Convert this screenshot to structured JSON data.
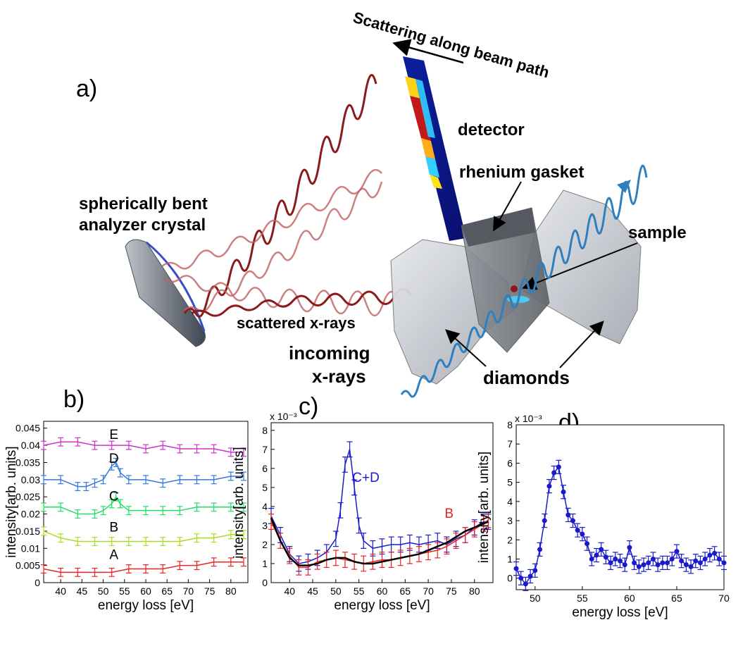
{
  "figure": {
    "panel_labels": [
      "a)",
      "b)",
      "c)",
      "d)"
    ],
    "annotations": {
      "scattering_direction": "Scattering along beam path",
      "detector": "detector",
      "rhenium_gasket": "rhenium gasket",
      "analyzer_line1": "spherically bent",
      "analyzer_line2": "analyzer crystal",
      "sample": "sample",
      "scattered": "scattered x-rays",
      "incoming_line1": "incoming",
      "incoming_line2": "x-rays",
      "diamonds": "diamonds"
    },
    "colors": {
      "scattered": "#8b1a1a",
      "incoming": "#1a1aff",
      "E": "#cc33cc",
      "D": "#3377dd",
      "C": "#22dd66",
      "B": "#aadd22",
      "A": "#ee2222",
      "blue": "#1a1acc",
      "red": "#ee2020",
      "black": "#000000"
    }
  },
  "chart_data": [
    {
      "panel": "b)",
      "type": "line",
      "xlabel": "energy loss [eV]",
      "ylabel": "intensity[arb. units]",
      "xlim": [
        36,
        84
      ],
      "ylim": [
        0,
        0.047
      ],
      "xticks": [
        "40",
        "45",
        "50",
        "55",
        "60",
        "65",
        "70",
        "75",
        "80"
      ],
      "yticks": [
        "0",
        "0.005",
        "0.01",
        "0.015",
        "0.02",
        "0.025",
        "0.03",
        "0.035",
        "0.04",
        "0.045"
      ],
      "series": [
        {
          "name": "E",
          "color": "#cc33cc",
          "x": [
            36,
            40,
            44,
            48,
            52,
            56,
            60,
            64,
            68,
            72,
            76,
            80,
            83
          ],
          "y": [
            0.04,
            0.041,
            0.041,
            0.04,
            0.04,
            0.04,
            0.039,
            0.04,
            0.039,
            0.039,
            0.039,
            0.038,
            0.038
          ]
        },
        {
          "name": "D",
          "color": "#3377dd",
          "x": [
            36,
            40,
            44,
            46,
            48,
            50,
            52,
            53,
            54,
            56,
            60,
            64,
            68,
            72,
            76,
            80,
            83
          ],
          "y": [
            0.03,
            0.03,
            0.028,
            0.028,
            0.029,
            0.03,
            0.034,
            0.035,
            0.032,
            0.03,
            0.03,
            0.029,
            0.03,
            0.03,
            0.03,
            0.031,
            0.031
          ]
        },
        {
          "name": "C",
          "color": "#22dd66",
          "x": [
            36,
            40,
            44,
            48,
            50,
            52,
            53,
            54,
            56,
            60,
            64,
            68,
            72,
            76,
            80,
            83
          ],
          "y": [
            0.022,
            0.022,
            0.02,
            0.02,
            0.021,
            0.023,
            0.025,
            0.023,
            0.021,
            0.021,
            0.021,
            0.021,
            0.022,
            0.022,
            0.022,
            0.022
          ]
        },
        {
          "name": "B",
          "color": "#aadd22",
          "x": [
            36,
            40,
            44,
            48,
            52,
            56,
            60,
            64,
            68,
            72,
            76,
            80,
            83
          ],
          "y": [
            0.015,
            0.013,
            0.012,
            0.012,
            0.012,
            0.012,
            0.012,
            0.012,
            0.012,
            0.013,
            0.013,
            0.014,
            0.014
          ]
        },
        {
          "name": "A",
          "color": "#ee2222",
          "x": [
            36,
            40,
            44,
            48,
            52,
            56,
            60,
            64,
            68,
            72,
            76,
            80,
            83
          ],
          "y": [
            0.004,
            0.003,
            0.003,
            0.003,
            0.003,
            0.004,
            0.004,
            0.004,
            0.005,
            0.005,
            0.006,
            0.006,
            0.006
          ]
        }
      ]
    },
    {
      "panel": "c)",
      "type": "line",
      "multiplier": "x 10⁻³",
      "xlabel": "energy loss [eV]",
      "ylabel": "intensity[arb. units]",
      "xlim": [
        36,
        84
      ],
      "ylim": [
        0,
        8.4
      ],
      "xticks": [
        "40",
        "45",
        "50",
        "55",
        "60",
        "65",
        "70",
        "75",
        "80"
      ],
      "yticks": [
        "0",
        "1",
        "2",
        "3",
        "4",
        "5",
        "6",
        "7",
        "8"
      ],
      "series": [
        {
          "name": "C+D",
          "color": "#1a1acc",
          "x": [
            36,
            38,
            40,
            42,
            44,
            46,
            48,
            50,
            51,
            52,
            53,
            54,
            55,
            56,
            58,
            60,
            62,
            64,
            66,
            68,
            70,
            72,
            74,
            76,
            78,
            80,
            82,
            83
          ],
          "y": [
            3.5,
            2.5,
            1.5,
            1.0,
            1.1,
            1.3,
            1.6,
            2.3,
            3.8,
            6.2,
            7.0,
            5.0,
            3.0,
            2.2,
            1.8,
            1.9,
            2.0,
            2.0,
            2.1,
            2.0,
            2.1,
            2.2,
            2.0,
            2.3,
            2.5,
            2.9,
            3.2,
            3.2
          ]
        },
        {
          "name": "B",
          "color": "#ee2020",
          "x": [
            36,
            38,
            40,
            42,
            44,
            46,
            48,
            50,
            52,
            54,
            56,
            58,
            60,
            62,
            64,
            66,
            68,
            70,
            72,
            74,
            76,
            78,
            80,
            82,
            83
          ],
          "y": [
            3.2,
            2.2,
            1.4,
            0.8,
            0.8,
            1.1,
            1.2,
            1.3,
            1.2,
            1.1,
            1.0,
            1.1,
            1.2,
            1.2,
            1.3,
            1.4,
            1.5,
            1.6,
            1.7,
            1.9,
            2.2,
            2.5,
            2.8,
            3.1,
            3.3
          ]
        },
        {
          "name": "",
          "color": "#000000",
          "x": [
            36,
            38,
            40,
            42,
            44,
            46,
            48,
            50,
            52,
            54,
            56,
            58,
            60,
            62,
            64,
            66,
            68,
            70,
            72,
            74,
            76,
            78,
            80,
            82,
            83
          ],
          "y": [
            3.4,
            2.2,
            1.3,
            0.9,
            0.9,
            1.0,
            1.2,
            1.3,
            1.3,
            1.1,
            1.0,
            1.0,
            1.1,
            1.2,
            1.3,
            1.4,
            1.5,
            1.7,
            1.9,
            2.1,
            2.4,
            2.7,
            2.9,
            3.1,
            3.2
          ]
        }
      ]
    },
    {
      "panel": "d)",
      "type": "line",
      "multiplier": "x 10⁻³",
      "xlabel": "energy loss [eV]",
      "ylabel": "intensity[arb. units]",
      "xlim": [
        48,
        70
      ],
      "ylim": [
        -0.6,
        8
      ],
      "xticks": [
        "50",
        "55",
        "60",
        "65",
        "70"
      ],
      "yticks": [
        "0",
        "1",
        "2",
        "3",
        "4",
        "5",
        "6",
        "7",
        "8"
      ],
      "series": [
        {
          "name": "",
          "color": "#1a1acc",
          "x": [
            48,
            48.5,
            49,
            49.5,
            50,
            50.5,
            51,
            51.5,
            52,
            52.5,
            53,
            53.5,
            54,
            54.5,
            55,
            55.5,
            56,
            56.5,
            57,
            57.5,
            58,
            58.5,
            59,
            59.5,
            60,
            60.5,
            61,
            61.5,
            62,
            62.5,
            63,
            63.5,
            64,
            64.5,
            65,
            65.5,
            66,
            66.5,
            67,
            67.5,
            68,
            68.5,
            69,
            69.5,
            70
          ],
          "y": [
            0.5,
            0.0,
            -0.3,
            0.1,
            0.4,
            1.5,
            3.0,
            4.8,
            5.5,
            5.8,
            4.5,
            3.3,
            3.0,
            2.5,
            2.3,
            1.8,
            1.0,
            1.2,
            1.5,
            1.1,
            0.8,
            1.0,
            0.9,
            0.7,
            1.6,
            0.8,
            0.6,
            0.7,
            0.8,
            1.0,
            0.7,
            0.8,
            0.8,
            1.0,
            1.4,
            0.9,
            0.7,
            0.6,
            0.9,
            0.8,
            1.0,
            1.2,
            1.3,
            1.0,
            0.8
          ]
        }
      ]
    }
  ]
}
